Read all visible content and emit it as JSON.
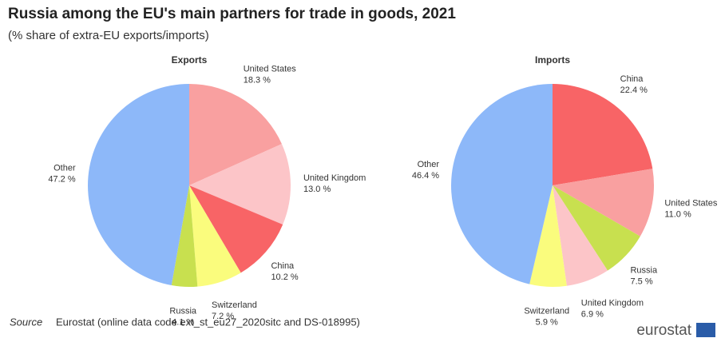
{
  "header": {
    "title": "Russia among the EU's main partners for trade in goods, 2021",
    "subtitle": "(% share of extra-EU exports/imports)"
  },
  "chart_data": [
    {
      "type": "pie",
      "title": "Exports",
      "categories": [
        "United States",
        "United Kingdom",
        "China",
        "Switzerland",
        "Russia",
        "Other"
      ],
      "values": [
        18.3,
        13.0,
        10.2,
        7.2,
        4.1,
        47.2
      ],
      "value_labels": [
        "18.3 %",
        "13.0 %",
        "10.2 %",
        "7.2 %",
        "4.1 %",
        "47.2 %"
      ],
      "colors": [
        "#f9a0a0",
        "#fcc5c8",
        "#f86466",
        "#fafc7d",
        "#c8e04f",
        "#8db8f9"
      ]
    },
    {
      "type": "pie",
      "title": "Imports",
      "categories": [
        "China",
        "United States",
        "Russia",
        "United Kingdom",
        "Switzerland",
        "Other"
      ],
      "values": [
        22.4,
        11.0,
        7.5,
        6.9,
        5.9,
        46.4
      ],
      "value_labels": [
        "22.4 %",
        "11.0 %",
        "7.5 %",
        "6.9 %",
        "5.9 %",
        "46.4 %"
      ],
      "colors": [
        "#f86466",
        "#f9a0a0",
        "#c8e04f",
        "#fcc5c8",
        "#fafc7d",
        "#8db8f9"
      ]
    }
  ],
  "footer": {
    "source_label": "Source",
    "source": "Eurostat (online data code  ext_st_eu27_2020sitc and DS-018995)",
    "logo": "eurostat"
  }
}
